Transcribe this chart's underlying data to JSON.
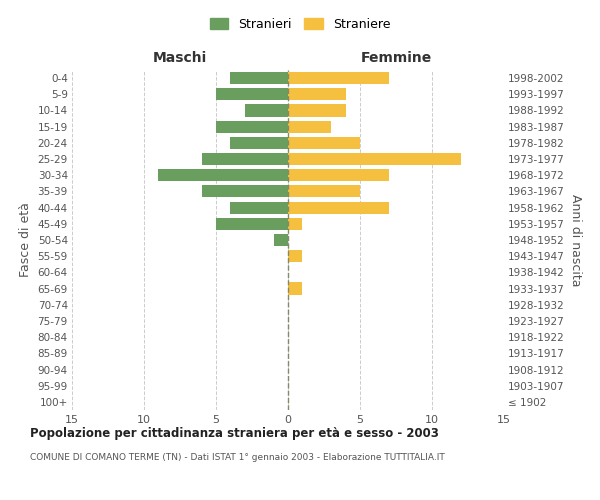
{
  "age_groups": [
    "100+",
    "95-99",
    "90-94",
    "85-89",
    "80-84",
    "75-79",
    "70-74",
    "65-69",
    "60-64",
    "55-59",
    "50-54",
    "45-49",
    "40-44",
    "35-39",
    "30-34",
    "25-29",
    "20-24",
    "15-19",
    "10-14",
    "5-9",
    "0-4"
  ],
  "birth_years": [
    "≤ 1902",
    "1903-1907",
    "1908-1912",
    "1913-1917",
    "1918-1922",
    "1923-1927",
    "1928-1932",
    "1933-1937",
    "1938-1942",
    "1943-1947",
    "1948-1952",
    "1953-1957",
    "1958-1962",
    "1963-1967",
    "1968-1972",
    "1973-1977",
    "1978-1982",
    "1983-1987",
    "1988-1992",
    "1993-1997",
    "1998-2002"
  ],
  "males": [
    0,
    0,
    0,
    0,
    0,
    0,
    0,
    0,
    0,
    0,
    1,
    5,
    4,
    6,
    9,
    6,
    4,
    5,
    3,
    5,
    4
  ],
  "females": [
    0,
    0,
    0,
    0,
    0,
    0,
    0,
    1,
    0,
    1,
    0,
    1,
    7,
    5,
    7,
    12,
    5,
    3,
    4,
    4,
    7
  ],
  "male_color": "#6a9e5e",
  "female_color": "#f5c040",
  "title": "Popolazione per cittadinanza straniera per età e sesso - 2003",
  "subtitle": "COMUNE DI COMANO TERME (TN) - Dati ISTAT 1° gennaio 2003 - Elaborazione TUTTITALIA.IT",
  "xlabel_left": "Maschi",
  "xlabel_right": "Femmine",
  "ylabel_left": "Fasce di età",
  "ylabel_right": "Anni di nascita",
  "legend_male": "Stranieri",
  "legend_female": "Straniere",
  "xlim": 15,
  "background_color": "#ffffff",
  "grid_color": "#cccccc"
}
